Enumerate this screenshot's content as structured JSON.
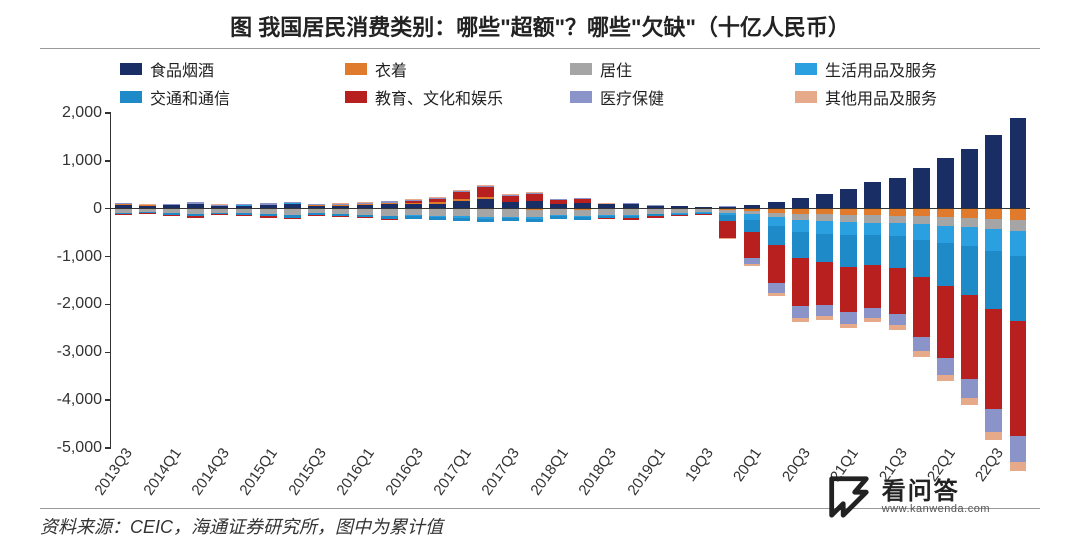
{
  "title": "图  我国居民消费类别：哪些\"超额\"？哪些\"欠缺\"（十亿人民币）",
  "source": "资料来源：CEIC，海通证券研究所，图中为累计值",
  "watermark": {
    "cn": "看问答",
    "en": "www.kanwenda.com"
  },
  "chart": {
    "type": "stacked-bar",
    "ylim": [
      -5000,
      2000
    ],
    "ytick_step": 1000,
    "yticks": [
      "2,000",
      "1,000",
      "0",
      "-1,000",
      "-2,000",
      "-3,000",
      "-4,000",
      "-5,000"
    ],
    "ytick_vals": [
      2000,
      1000,
      0,
      -1000,
      -2000,
      -3000,
      -4000,
      -5000
    ],
    "background_color": "#ffffff",
    "axis_color": "#333333",
    "label_fontsize": 16,
    "title_fontsize": 22,
    "series": [
      {
        "key": "food",
        "label": "食品烟酒",
        "color": "#1a2e66"
      },
      {
        "key": "clothing",
        "label": "衣着",
        "color": "#e07b2e"
      },
      {
        "key": "housing",
        "label": "居住",
        "color": "#a5a5a5"
      },
      {
        "key": "household",
        "label": "生活用品及服务",
        "color": "#2aa0e0"
      },
      {
        "key": "transport",
        "label": "交通和通信",
        "color": "#1e8bc8"
      },
      {
        "key": "education",
        "label": "教育、文化和娱乐",
        "color": "#b82020"
      },
      {
        "key": "health",
        "label": "医疗保健",
        "color": "#8a94c8"
      },
      {
        "key": "other",
        "label": "其他用品及服务",
        "color": "#e6a98a"
      }
    ],
    "categories": [
      "2013Q3",
      "2014Q1",
      "2014Q3",
      "2015Q1",
      "2015Q3",
      "2016Q1",
      "2016Q3",
      "2017Q1",
      "2017Q3",
      "2018Q1",
      "2018Q3",
      "2019Q1",
      "19Q3",
      "20Q1",
      "20Q3",
      "21Q1",
      "21Q3",
      "22Q1",
      "22Q3"
    ],
    "label_every": 2,
    "data": [
      {
        "p": {
          "food": 80,
          "clothing": 10,
          "household": 5,
          "health": 20,
          "other": 5
        },
        "n": {
          "housing": -90,
          "transport": -30,
          "education": -20
        }
      },
      {
        "p": {
          "food": 60,
          "clothing": 8,
          "household": 4,
          "health": 15,
          "other": 4
        },
        "n": {
          "housing": -70,
          "transport": -25,
          "education": -15
        }
      },
      {
        "p": {
          "food": 70,
          "clothing": 10,
          "household": 5,
          "health": 18,
          "other": 5
        },
        "n": {
          "housing": -100,
          "transport": -30,
          "education": -18
        }
      },
      {
        "p": {
          "food": 90,
          "clothing": 12,
          "household": 6,
          "health": 25,
          "other": 6
        },
        "n": {
          "housing": -120,
          "transport": -40,
          "education": -25
        }
      },
      {
        "p": {
          "food": 50,
          "clothing": 10,
          "household": 5,
          "health": 20,
          "other": 5
        },
        "n": {
          "housing": -90,
          "transport": -30,
          "education": -20
        }
      },
      {
        "p": {
          "food": 55,
          "clothing": 10,
          "household": 5,
          "health": 22,
          "other": 5
        },
        "n": {
          "housing": -95,
          "transport": -32,
          "education": -20
        }
      },
      {
        "p": {
          "food": 70,
          "clothing": 12,
          "household": 6,
          "health": 25,
          "other": 6
        },
        "n": {
          "housing": -120,
          "transport": -40,
          "education": -25
        }
      },
      {
        "p": {
          "food": 90,
          "clothing": 15,
          "household": 8,
          "health": 30,
          "other": 8
        },
        "n": {
          "housing": -140,
          "transport": -50,
          "education": -30
        }
      },
      {
        "p": {
          "food": 60,
          "clothing": 10,
          "household": 6,
          "health": 22,
          "other": 6
        },
        "n": {
          "housing": -100,
          "transport": -35,
          "education": -22
        }
      },
      {
        "p": {
          "food": 65,
          "clothing": 12,
          "household": 6,
          "health": 25,
          "other": 6
        },
        "n": {
          "housing": -110,
          "transport": -38,
          "education": -25
        }
      },
      {
        "p": {
          "food": 80,
          "clothing": 14,
          "household": 7,
          "health": 28,
          "other": 7
        },
        "n": {
          "housing": -130,
          "transport": -45,
          "education": -28
        }
      },
      {
        "p": {
          "food": 100,
          "clothing": 16,
          "household": 9,
          "health": 35,
          "other": 9
        },
        "n": {
          "housing": -150,
          "transport": -55,
          "education": -35
        }
      },
      {
        "p": {
          "food": 90,
          "clothing": 30,
          "education": 40,
          "health": 30,
          "other": 10
        },
        "n": {
          "housing": -140,
          "transport": -50,
          "household": -20
        }
      },
      {
        "p": {
          "food": 100,
          "clothing": 35,
          "education": 60,
          "health": 35,
          "other": 12
        },
        "n": {
          "housing": -150,
          "transport": -55,
          "household": -25
        }
      },
      {
        "p": {
          "food": 160,
          "clothing": 40,
          "education": 150,
          "health": 25,
          "other": 15
        },
        "n": {
          "housing": -160,
          "transport": -60,
          "household": -30
        }
      },
      {
        "p": {
          "food": 200,
          "clothing": 50,
          "education": 200,
          "health": 30,
          "other": 18
        },
        "n": {
          "housing": -180,
          "transport": -70,
          "household": -35
        }
      },
      {
        "p": {
          "food": 150,
          "education": 120,
          "health": 20,
          "other": 10
        },
        "n": {
          "housing": -150,
          "transport": -60,
          "household": -28,
          "clothing": -15
        }
      },
      {
        "p": {
          "food": 170,
          "education": 140,
          "health": 25,
          "other": 12
        },
        "n": {
          "housing": -160,
          "transport": -65,
          "household": -30,
          "clothing": -18
        }
      },
      {
        "p": {
          "food": 100,
          "education": 80,
          "health": 15,
          "other": 8
        },
        "n": {
          "housing": -120,
          "transport": -50,
          "household": -22,
          "clothing": -15
        }
      },
      {
        "p": {
          "food": 110,
          "education": 90,
          "health": 18,
          "other": 10
        },
        "n": {
          "housing": -130,
          "transport": -55,
          "household": -25,
          "clothing": -18
        }
      },
      {
        "p": {
          "food": 90,
          "health": 15,
          "other": 8
        },
        "n": {
          "housing": -110,
          "transport": -48,
          "household": -20,
          "clothing": -15,
          "education": -30
        }
      },
      {
        "p": {
          "food": 95,
          "health": 16,
          "other": 9
        },
        "n": {
          "housing": -115,
          "transport": -50,
          "household": -22,
          "clothing": -16,
          "education": -35
        }
      },
      {
        "p": {
          "food": 60,
          "health": 12,
          "other": 6
        },
        "n": {
          "housing": -90,
          "transport": -40,
          "household": -18,
          "clothing": -12,
          "education": -25
        }
      },
      {
        "p": {
          "food": 50,
          "health": 10,
          "other": 5
        },
        "n": {
          "housing": -80,
          "transport": -35,
          "household": -15,
          "clothing": -10,
          "education": -20
        }
      },
      {
        "p": {
          "food": 30,
          "health": 8,
          "other": 4
        },
        "n": {
          "housing": -60,
          "transport": -28,
          "household": -12,
          "clothing": -8,
          "education": -15
        }
      },
      {
        "p": {
          "food": 40,
          "health": 10
        },
        "n": {
          "clothing": -30,
          "housing": -50,
          "household": -60,
          "transport": -120,
          "education": -350,
          "other": -20
        }
      },
      {
        "p": {
          "food": 80
        },
        "n": {
          "clothing": -50,
          "housing": -70,
          "household": -120,
          "transport": -250,
          "education": -550,
          "health": -120,
          "other": -40
        }
      },
      {
        "p": {
          "food": 150
        },
        "n": {
          "clothing": -80,
          "housing": -100,
          "household": -180,
          "transport": -400,
          "education": -800,
          "health": -200,
          "other": -60
        }
      },
      {
        "p": {
          "food": 230
        },
        "n": {
          "clothing": -110,
          "housing": -130,
          "household": -240,
          "transport": -550,
          "education": -1000,
          "health": -250,
          "other": -80
        }
      },
      {
        "p": {
          "food": 300
        },
        "n": {
          "clothing": -120,
          "housing": -140,
          "household": -260,
          "transport": -600,
          "education": -900,
          "health": -230,
          "other": -85
        }
      },
      {
        "p": {
          "food": 420
        },
        "n": {
          "clothing": -130,
          "housing": -150,
          "household": -280,
          "transport": -650,
          "education": -950,
          "health": -240,
          "other": -90
        }
      },
      {
        "p": {
          "food": 550
        },
        "n": {
          "clothing": -140,
          "housing": -150,
          "household": -260,
          "transport": -620,
          "education": -900,
          "health": -220,
          "other": -85
        }
      },
      {
        "p": {
          "food": 650
        },
        "n": {
          "clothing": -145,
          "housing": -155,
          "household": -280,
          "transport": -660,
          "education": -960,
          "health": -240,
          "other": -90
        }
      },
      {
        "p": {
          "food": 850
        },
        "n": {
          "clothing": -160,
          "housing": -170,
          "household": -320,
          "transport": -780,
          "education": -1250,
          "health": -300,
          "other": -110
        }
      },
      {
        "p": {
          "food": 1050
        },
        "n": {
          "clothing": -175,
          "housing": -185,
          "household": -360,
          "transport": -900,
          "education": -1500,
          "health": -350,
          "other": -125
        }
      },
      {
        "p": {
          "food": 1250
        },
        "n": {
          "clothing": -190,
          "housing": -200,
          "household": -400,
          "transport": -1020,
          "education": -1750,
          "health": -400,
          "other": -140
        }
      },
      {
        "p": {
          "food": 1550
        },
        "n": {
          "clothing": -210,
          "housing": -220,
          "household": -460,
          "transport": -1200,
          "education": -2100,
          "health": -480,
          "other": -165
        }
      },
      {
        "p": {
          "food": 1900
        },
        "n": {
          "clothing": -230,
          "housing": -240,
          "household": -520,
          "transport": -1350,
          "education": -2400,
          "health": -550,
          "other": -190
        }
      }
    ]
  }
}
